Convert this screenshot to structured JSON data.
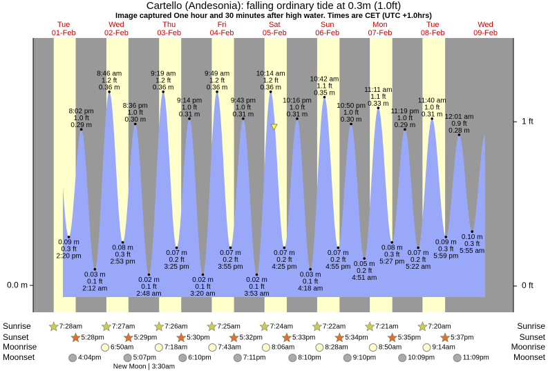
{
  "chart_data": {
    "type": "tide",
    "title": "Cartello (Andesonia): falling  ordinary tide at 0.3m (1.0ft)",
    "subtitle": "Image captured One hour and 30 minutes after high water. Times are CET (UTC +1.0hrs)",
    "row_labels": [
      "Sunrise",
      "Sunset",
      "Moonrise",
      "Moonset"
    ],
    "ylim": [
      -0.05,
      0.46
    ],
    "yticks": [
      {
        "value": 0,
        "label": "0.0 m"
      }
    ],
    "y2lim": [
      -0.16,
      1.51
    ],
    "y2ticks": [
      {
        "value": 0,
        "label": "0 ft"
      },
      {
        "value": 1,
        "label": "1 ft"
      }
    ],
    "days": [
      {
        "weekday": "Tue",
        "date": "01-Feb",
        "sunrise": "7:28am",
        "sunset": "5:28pm",
        "moonrise": null,
        "moonset": "4:04pm",
        "tides": [
          {
            "time": "2:20 pm",
            "m": 0.09,
            "value_label": "0.09 m",
            "ft_label": "0.3 ft"
          },
          {
            "time": "8:02 pm",
            "m": 0.29,
            "value_label": "0.29 m",
            "ft_label": "1.0 ft"
          }
        ]
      },
      {
        "weekday": "Wed",
        "date": "02-Feb",
        "sunrise": "7:27am",
        "sunset": "5:29pm",
        "moonrise": "6:50am",
        "moonset": "5:07pm",
        "moon_phase": "New Moon | 3:30am",
        "tides": [
          {
            "time": "2:12 am",
            "m": 0.03,
            "value_label": "0.03 m",
            "ft_label": "0.1 ft"
          },
          {
            "time": "8:46 am",
            "m": 0.36,
            "value_label": "0.36 m",
            "ft_label": "1.2 ft"
          },
          {
            "time": "2:53 pm",
            "m": 0.08,
            "value_label": "0.08 m",
            "ft_label": "0.3 ft"
          },
          {
            "time": "8:36 pm",
            "m": 0.3,
            "value_label": "0.30 m",
            "ft_label": "1.0 ft"
          }
        ]
      },
      {
        "weekday": "Thu",
        "date": "03-Feb",
        "sunrise": "7:26am",
        "sunset": "5:30pm",
        "moonrise": "7:18am",
        "moonset": "6:10pm",
        "tides": [
          {
            "time": "2:48 am",
            "m": 0.02,
            "value_label": "0.02 m",
            "ft_label": "0.1 ft"
          },
          {
            "time": "9:19 am",
            "m": 0.36,
            "value_label": "0.36 m",
            "ft_label": "1.2 ft"
          },
          {
            "time": "3:25 pm",
            "m": 0.07,
            "value_label": "0.07 m",
            "ft_label": "0.2 ft"
          },
          {
            "time": "9:14 pm",
            "m": 0.31,
            "value_label": "0.31 m",
            "ft_label": "1.0 ft"
          }
        ]
      },
      {
        "weekday": "Fri",
        "date": "04-Feb",
        "sunrise": "7:25am",
        "sunset": "5:32pm",
        "moonrise": "7:43am",
        "moonset": "7:11pm",
        "tides": [
          {
            "time": "3:20 am",
            "m": 0.02,
            "value_label": "0.02 m",
            "ft_label": "0.1 ft"
          },
          {
            "time": "9:49 am",
            "m": 0.36,
            "value_label": "0.36 m",
            "ft_label": "1.2 ft"
          },
          {
            "time": "3:55 pm",
            "m": 0.07,
            "value_label": "0.07 m",
            "ft_label": "0.2 ft"
          },
          {
            "time": "9:43 pm",
            "m": 0.31,
            "value_label": "0.31 m",
            "ft_label": "1.0 ft"
          }
        ]
      },
      {
        "weekday": "Sat",
        "date": "05-Feb",
        "sunrise": "7:24am",
        "sunset": "5:33pm",
        "moonrise": "8:06am",
        "moonset": "8:10pm",
        "tides": [
          {
            "time": "3:53 am",
            "m": 0.02,
            "value_label": "0.02 m",
            "ft_label": "0.1 ft"
          },
          {
            "time": "10:14 am",
            "m": 0.36,
            "value_label": "0.36 m",
            "ft_label": "1.2 ft"
          },
          {
            "time": "4:25 pm",
            "m": 0.07,
            "value_label": "0.07 m",
            "ft_label": "0.2 ft"
          },
          {
            "time": "10:16 pm",
            "m": 0.31,
            "value_label": "0.31 m",
            "ft_label": "1.0 ft"
          }
        ]
      },
      {
        "weekday": "Sun",
        "date": "06-Feb",
        "sunrise": "7:22am",
        "sunset": "5:34pm",
        "moonrise": "8:28am",
        "moonset": "9:10pm",
        "tides": [
          {
            "time": "4:18 am",
            "m": 0.03,
            "value_label": "0.03 m",
            "ft_label": "0.1 ft"
          },
          {
            "time": "10:42 am",
            "m": 0.35,
            "value_label": "0.35 m",
            "ft_label": "1.1 ft"
          },
          {
            "time": "4:55 pm",
            "m": 0.07,
            "value_label": "0.07 m",
            "ft_label": "0.2 ft"
          },
          {
            "time": "10:50 pm",
            "m": 0.3,
            "value_label": "0.30 m",
            "ft_label": "1.0 ft"
          }
        ]
      },
      {
        "weekday": "Mon",
        "date": "07-Feb",
        "sunrise": "7:21am",
        "sunset": "5:35pm",
        "moonrise": "8:50am",
        "moonset": "10:09pm",
        "tides": [
          {
            "time": "4:51 am",
            "m": 0.05,
            "value_label": "0.05 m",
            "ft_label": "0.2 ft"
          },
          {
            "time": "11:11 am",
            "m": 0.33,
            "value_label": "0.33 m",
            "ft_label": "1.1 ft"
          },
          {
            "time": "5:27 pm",
            "m": 0.08,
            "value_label": "0.08 m",
            "ft_label": "0.3 ft"
          },
          {
            "time": "11:19 pm",
            "m": 0.29,
            "value_label": "0.29 m",
            "ft_label": "1.0 ft"
          }
        ]
      },
      {
        "weekday": "Tue",
        "date": "08-Feb",
        "sunrise": "7:20am",
        "sunset": "5:37pm",
        "moonrise": "9:14am",
        "moonset": "11:09pm",
        "tides": [
          {
            "time": "5:22 am",
            "m": 0.07,
            "value_label": "0.07 m",
            "ft_label": "0.2 ft"
          },
          {
            "time": "11:40 am",
            "m": 0.31,
            "value_label": "0.31 m",
            "ft_label": "1.0 ft"
          },
          {
            "time": "5:59 pm",
            "m": 0.09,
            "value_label": "0.09 m",
            "ft_label": "0.3 ft"
          }
        ]
      },
      {
        "weekday": "Wed",
        "date": "09-Feb",
        "sunrise": null,
        "sunset": null,
        "moonrise": null,
        "moonset": null,
        "tides": [
          {
            "time": "12:01 am",
            "m": 0.28,
            "value_label": "0.28 m",
            "ft_label": "0.9 ft"
          },
          {
            "time": "5:55 am",
            "m": 0.1,
            "value_label": "0.10 m",
            "ft_label": "0.3 ft"
          }
        ]
      }
    ]
  }
}
